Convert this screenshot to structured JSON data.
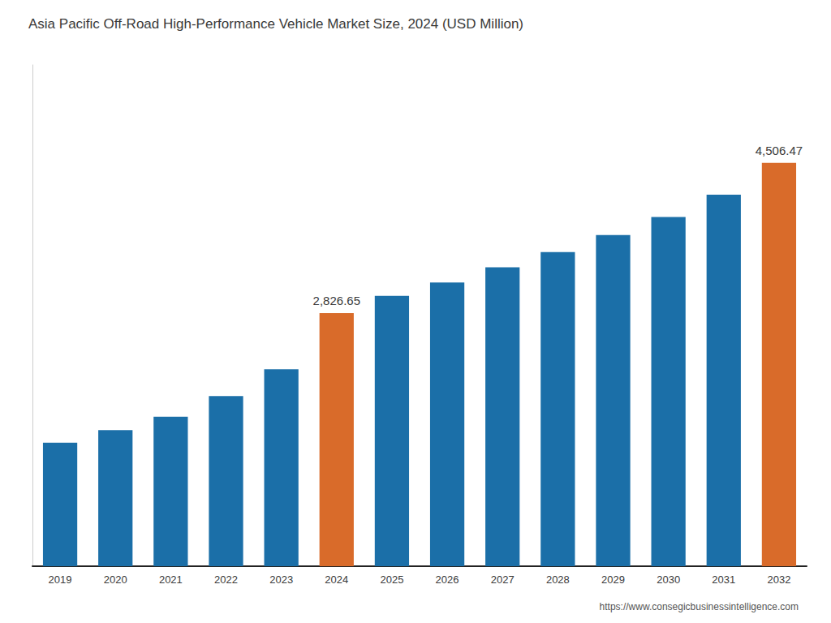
{
  "chart_data": {
    "type": "bar",
    "title": "Asia Pacific Off-Road High-Performance Vehicle Market Size, 2024 (USD Million)",
    "categories": [
      "2019",
      "2020",
      "2021",
      "2022",
      "2023",
      "2024",
      "2025",
      "2026",
      "2027",
      "2028",
      "2029",
      "2030",
      "2031",
      "2032"
    ],
    "values": [
      1380,
      1520,
      1670,
      1900,
      2200,
      2826.65,
      3020,
      3170,
      3340,
      3510,
      3700,
      3900,
      4150,
      4506.47
    ],
    "value_labels": [
      null,
      null,
      null,
      null,
      null,
      "2,826.65",
      null,
      null,
      null,
      null,
      null,
      null,
      null,
      "4,506.47"
    ],
    "colors": [
      "#1b6fa8",
      "#1b6fa8",
      "#1b6fa8",
      "#1b6fa8",
      "#1b6fa8",
      "#d96b2a",
      "#1b6fa8",
      "#1b6fa8",
      "#1b6fa8",
      "#1b6fa8",
      "#1b6fa8",
      "#1b6fa8",
      "#1b6fa8",
      "#d96b2a"
    ],
    "ylim": [
      0,
      5600
    ],
    "grid": false,
    "tick_labels": "x",
    "annotations": [
      "https://www.consegicbusinessintelligence.com"
    ]
  }
}
